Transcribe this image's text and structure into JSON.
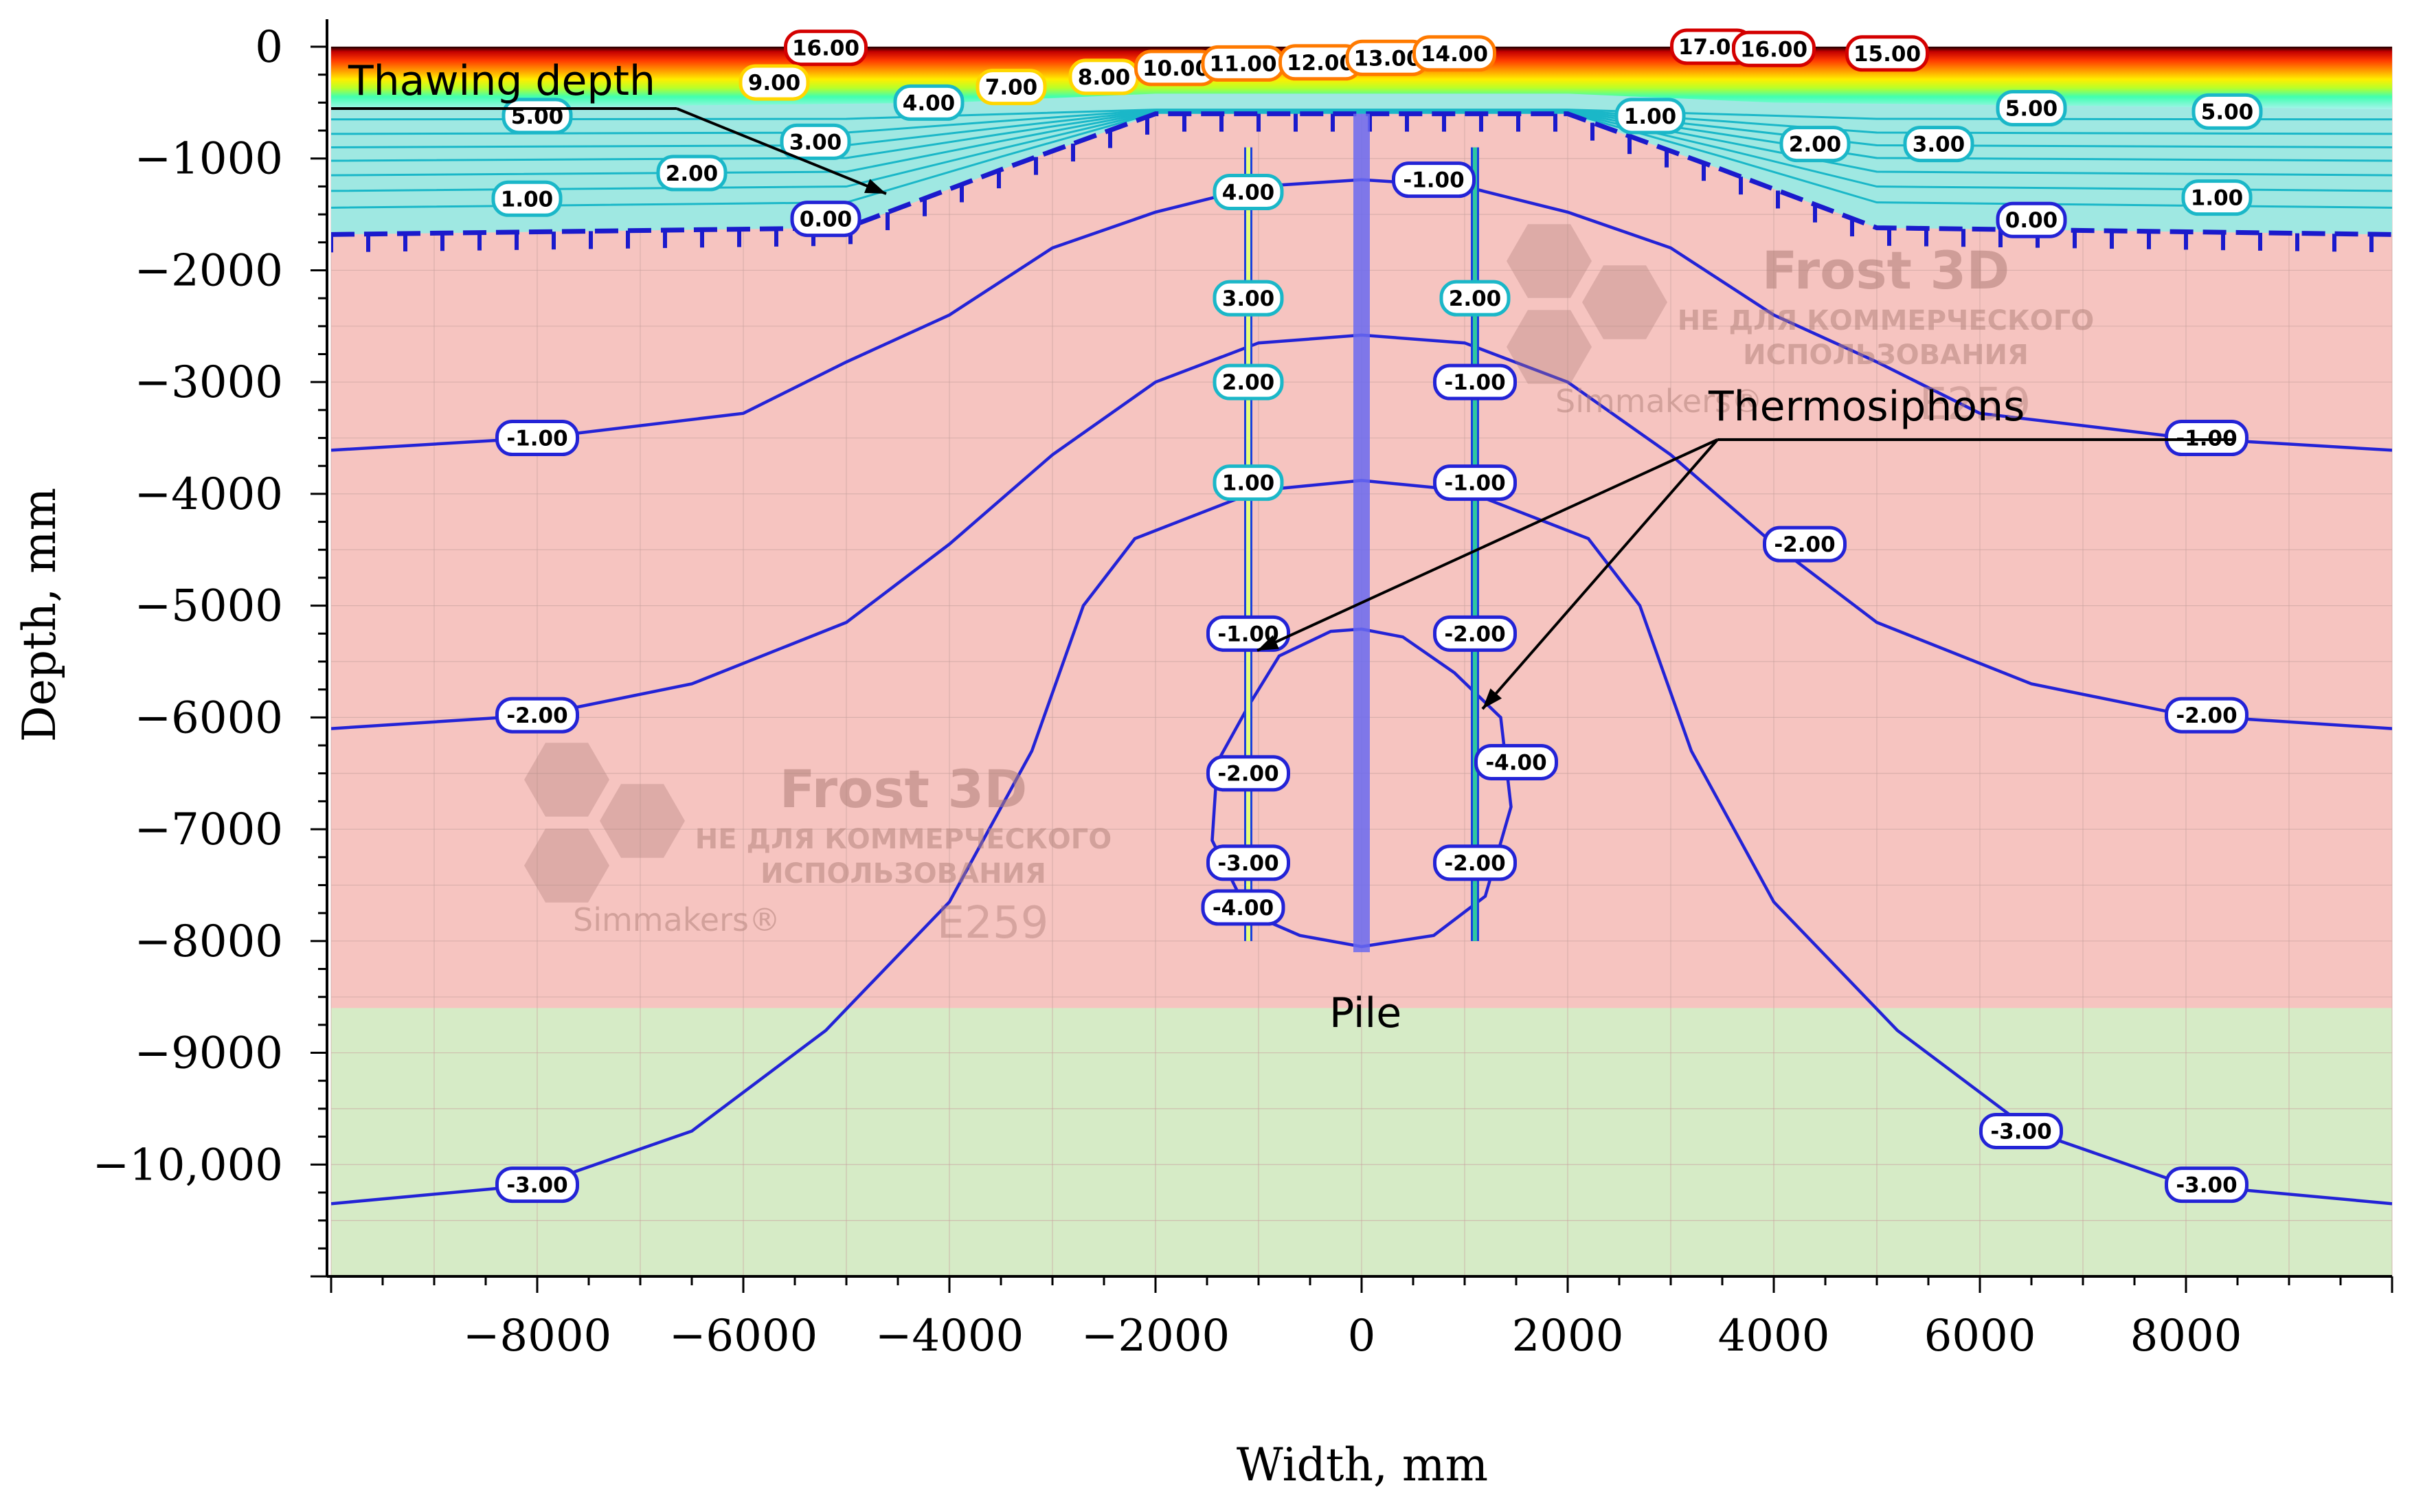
{
  "chart_data": {
    "type": "contour",
    "xlabel": "Width, mm",
    "ylabel": "Depth, mm",
    "xlim": [
      -10000,
      10000
    ],
    "ylim": [
      -11000,
      0
    ],
    "x_ticks": [
      -8000,
      -6000,
      -4000,
      -2000,
      0,
      2000,
      4000,
      6000,
      8000
    ],
    "x_tick_labels": [
      "−8000",
      "−6000",
      "−4000",
      "−2000",
      "0",
      "2000",
      "4000",
      "6000",
      "8000"
    ],
    "y_ticks": [
      0,
      -1000,
      -2000,
      -3000,
      -4000,
      -5000,
      -6000,
      -7000,
      -8000,
      -9000,
      -10000
    ],
    "y_tick_labels": [
      "0",
      "−1000",
      "−2000",
      "−3000",
      "−4000",
      "−5000",
      "−6000",
      "−7000",
      "−8000",
      "−9000",
      "−10,000"
    ],
    "grid": true,
    "layers": [
      {
        "from": 0,
        "to": -8600,
        "color": "#f6c4c0"
      },
      {
        "from": -8600,
        "to": -11000,
        "color": "#d6ebc6"
      }
    ],
    "annotations": {
      "thawing_depth": "Thawing depth",
      "thermosiphons": "Thermosiphons",
      "pile": "Pile"
    },
    "contours": [
      {
        "level": "-1.00",
        "points": [
          [
            -10000,
            -3610
          ],
          [
            -8000,
            -3500
          ],
          [
            -6000,
            -3280
          ],
          [
            -5000,
            -2820
          ],
          [
            -4000,
            -2400
          ],
          [
            -3000,
            -1800
          ],
          [
            -2000,
            -1480
          ],
          [
            -1000,
            -1250
          ],
          [
            0,
            -1190
          ],
          [
            1000,
            -1250
          ],
          [
            2000,
            -1480
          ],
          [
            3000,
            -1800
          ],
          [
            4000,
            -2400
          ],
          [
            5000,
            -2820
          ],
          [
            6000,
            -3280
          ],
          [
            8000,
            -3500
          ],
          [
            10000,
            -3610
          ]
        ]
      },
      {
        "level": "-2.00",
        "points": [
          [
            -10000,
            -6100
          ],
          [
            -8000,
            -5980
          ],
          [
            -6500,
            -5700
          ],
          [
            -5000,
            -5150
          ],
          [
            -4000,
            -4450
          ],
          [
            -3000,
            -3650
          ],
          [
            -2000,
            -3000
          ],
          [
            -1000,
            -2650
          ],
          [
            0,
            -2580
          ],
          [
            1000,
            -2650
          ],
          [
            2000,
            -3000
          ],
          [
            3000,
            -3650
          ],
          [
            4000,
            -4450
          ],
          [
            5000,
            -5150
          ],
          [
            6500,
            -5700
          ],
          [
            8000,
            -5980
          ],
          [
            10000,
            -6100
          ]
        ]
      },
      {
        "level": "-3.00",
        "points": [
          [
            -10000,
            -10350
          ],
          [
            -8000,
            -10180
          ],
          [
            -6500,
            -9700
          ],
          [
            -5200,
            -8800
          ],
          [
            -4000,
            -7650
          ],
          [
            -3200,
            -6300
          ],
          [
            -2700,
            -5000
          ],
          [
            -2200,
            -4400
          ],
          [
            -1000,
            -3970
          ],
          [
            0,
            -3880
          ],
          [
            1000,
            -3970
          ],
          [
            2200,
            -4400
          ],
          [
            2700,
            -5000
          ],
          [
            3200,
            -6300
          ],
          [
            4000,
            -7650
          ],
          [
            5200,
            -8800
          ],
          [
            6500,
            -9700
          ],
          [
            8000,
            -10180
          ],
          [
            10000,
            -10350
          ]
        ]
      }
    ],
    "contour_labels": [
      {
        "text": "16.00",
        "x": -5200,
        "y": -10
      },
      {
        "text": "9.00",
        "x": -5700,
        "y": -320
      },
      {
        "text": "5.00",
        "x": -8000,
        "y": -620
      },
      {
        "text": "7.00",
        "x": -3400,
        "y": -360
      },
      {
        "text": "4.00",
        "x": -4200,
        "y": -500
      },
      {
        "text": "3.00",
        "x": -5300,
        "y": -850
      },
      {
        "text": "2.00",
        "x": -6500,
        "y": -1130
      },
      {
        "text": "1.00",
        "x": -8100,
        "y": -1360
      },
      {
        "text": "0.00",
        "x": -5200,
        "y": -1540
      },
      {
        "text": "8.00",
        "x": -2500,
        "y": -270
      },
      {
        "text": "10.00",
        "x": -1800,
        "y": -190
      },
      {
        "text": "11.00",
        "x": -1150,
        "y": -150
      },
      {
        "text": "12.00",
        "x": -400,
        "y": -140
      },
      {
        "text": "13.00",
        "x": 250,
        "y": -100
      },
      {
        "text": "14.00",
        "x": 900,
        "y": -60
      },
      {
        "text": "17.00",
        "x": 3400,
        "y": 0
      },
      {
        "text": "16.00",
        "x": 4000,
        "y": -20
      },
      {
        "text": "15.00",
        "x": 5100,
        "y": -60
      },
      {
        "text": "1.00",
        "x": 2800,
        "y": -620
      },
      {
        "text": "2.00",
        "x": 4400,
        "y": -870
      },
      {
        "text": "3.00",
        "x": 5600,
        "y": -870
      },
      {
        "text": "5.00",
        "x": 6500,
        "y": -550
      },
      {
        "text": "5.00",
        "x": 8400,
        "y": -580
      },
      {
        "text": "1.00",
        "x": 8300,
        "y": -1350
      },
      {
        "text": "0.00",
        "x": 6500,
        "y": -1550
      },
      {
        "text": "-1.00",
        "x": 700,
        "y": -1190
      },
      {
        "text": "-1.00",
        "x": -8000,
        "y": -3500
      },
      {
        "text": "-1.00",
        "x": 8200,
        "y": -3500
      },
      {
        "text": "-2.00",
        "x": 4300,
        "y": -4450
      },
      {
        "text": "-2.00",
        "x": -8000,
        "y": -5980
      },
      {
        "text": "-2.00",
        "x": 8200,
        "y": -5980
      },
      {
        "text": "-3.00",
        "x": -8000,
        "y": -10180
      },
      {
        "text": "-3.00",
        "x": 8200,
        "y": -10180
      },
      {
        "text": "-3.00",
        "x": 6400,
        "y": -9700
      },
      {
        "text": "-4.00",
        "x": -1150,
        "y": -7700
      },
      {
        "text": "-4.00",
        "x": 1500,
        "y": -6400
      },
      {
        "text": "4.00",
        "x": -1100,
        "y": -1300
      },
      {
        "text": "3.00",
        "x": -1100,
        "y": -2250
      },
      {
        "text": "2.00",
        "x": -1100,
        "y": -3000
      },
      {
        "text": "1.00",
        "x": -1100,
        "y": -3900
      },
      {
        "text": "-1.00",
        "x": -1100,
        "y": -5250
      },
      {
        "text": "-2.00",
        "x": -1100,
        "y": -6500
      },
      {
        "text": "-3.00",
        "x": -1100,
        "y": -7300
      },
      {
        "text": "2.00",
        "x": 1100,
        "y": -2250
      },
      {
        "text": "-1.00",
        "x": 1100,
        "y": -3000
      },
      {
        "text": "-1.00",
        "x": 1100,
        "y": -3900
      },
      {
        "text": "-2.00",
        "x": 1100,
        "y": -5250
      },
      {
        "text": "-2.00",
        "x": 1100,
        "y": -7300
      }
    ],
    "watermarks": [
      {
        "title": "Frost 3D",
        "line1": "НЕ ДЛЯ КОММЕРЧЕСКОГО",
        "line2": "ИСПОЛЬЗОВАНИЯ",
        "brand": "Simmakers®",
        "code": "E259"
      }
    ]
  }
}
